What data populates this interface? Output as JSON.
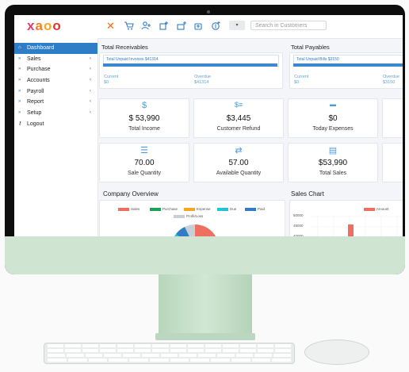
{
  "app": {
    "logo_letters": [
      "x",
      "a",
      "o",
      "o"
    ],
    "logo_colors": [
      "#e73a6e",
      "#f47b20",
      "#f5a623",
      "#e0362c"
    ]
  },
  "sidebar": {
    "items": [
      {
        "label": "Dashboard",
        "icon": "home-icon",
        "active": true,
        "chevron": ""
      },
      {
        "label": "Sales",
        "icon": "double-chevron-icon",
        "chevron": "‹"
      },
      {
        "label": "Purchase",
        "icon": "double-chevron-icon",
        "chevron": "‹"
      },
      {
        "label": "Accounts",
        "icon": "double-chevron-icon",
        "chevron": "‹"
      },
      {
        "label": "Payroll",
        "icon": "double-chevron-icon",
        "chevron": "‹"
      },
      {
        "label": "Report",
        "icon": "double-chevron-icon",
        "chevron": "‹"
      },
      {
        "label": "Setup",
        "icon": "double-chevron-icon",
        "chevron": "‹"
      },
      {
        "label": "Logout",
        "icon": "key-icon",
        "chevron": ""
      }
    ]
  },
  "topbar": {
    "close_glyph": "✕",
    "dropdown_glyph": "▾",
    "search_placeholder": "Search in Customers"
  },
  "receivables": {
    "title": "Total Receivables",
    "unpaid_label": "Total Unpaid Invoices $41314",
    "current_label": "Current",
    "current_value": "$0",
    "overdue_label": "Overdue",
    "overdue_value": "$41314",
    "progress": 1.0
  },
  "payables": {
    "title": "Total Payables",
    "unpaid_label": "Total Unpaid Bills $3150",
    "current_label": "Current",
    "current_value": "$0",
    "overdue_label": "Overdue",
    "overdue_value": "$3150",
    "progress": 1.0
  },
  "stats": [
    {
      "icon": "money-hand-icon",
      "glyph": "$",
      "value": "$ 53,990",
      "label": "Total Income"
    },
    {
      "icon": "cash-icon",
      "glyph": "$≡",
      "value": "$3,445",
      "label": "Customer Refund"
    },
    {
      "icon": "minus-icon",
      "glyph": "▬",
      "value": "$0",
      "label": "Today Expenses"
    },
    {
      "icon": "list-icon",
      "glyph": "☰",
      "value": "70.00",
      "label": "Sale Quantity"
    },
    {
      "icon": "exchange-icon",
      "glyph": "⇄",
      "value": "57.00",
      "label": "Available Quantity"
    },
    {
      "icon": "receipt-icon",
      "glyph": "▤",
      "value": "$53,990",
      "label": "Total Sales"
    }
  ],
  "company_overview": {
    "title": "Company Overview",
    "legend": [
      {
        "name": "Sales",
        "color": "#ee6e5f"
      },
      {
        "name": "Purchase",
        "color": "#1aa25a"
      },
      {
        "name": "Expense",
        "color": "#f5a623"
      },
      {
        "name": "Due",
        "color": "#1ec6d6"
      },
      {
        "name": "Paid",
        "color": "#2f7cc7"
      },
      {
        "name": "Profit/Loss",
        "color": "#c9cfd6"
      }
    ]
  },
  "sales_chart": {
    "title": "Sales Chart",
    "legend": "Amount",
    "legend_color": "#ee6e5f",
    "y_ticks": [
      "50000",
      "45000",
      "40000"
    ]
  }
}
